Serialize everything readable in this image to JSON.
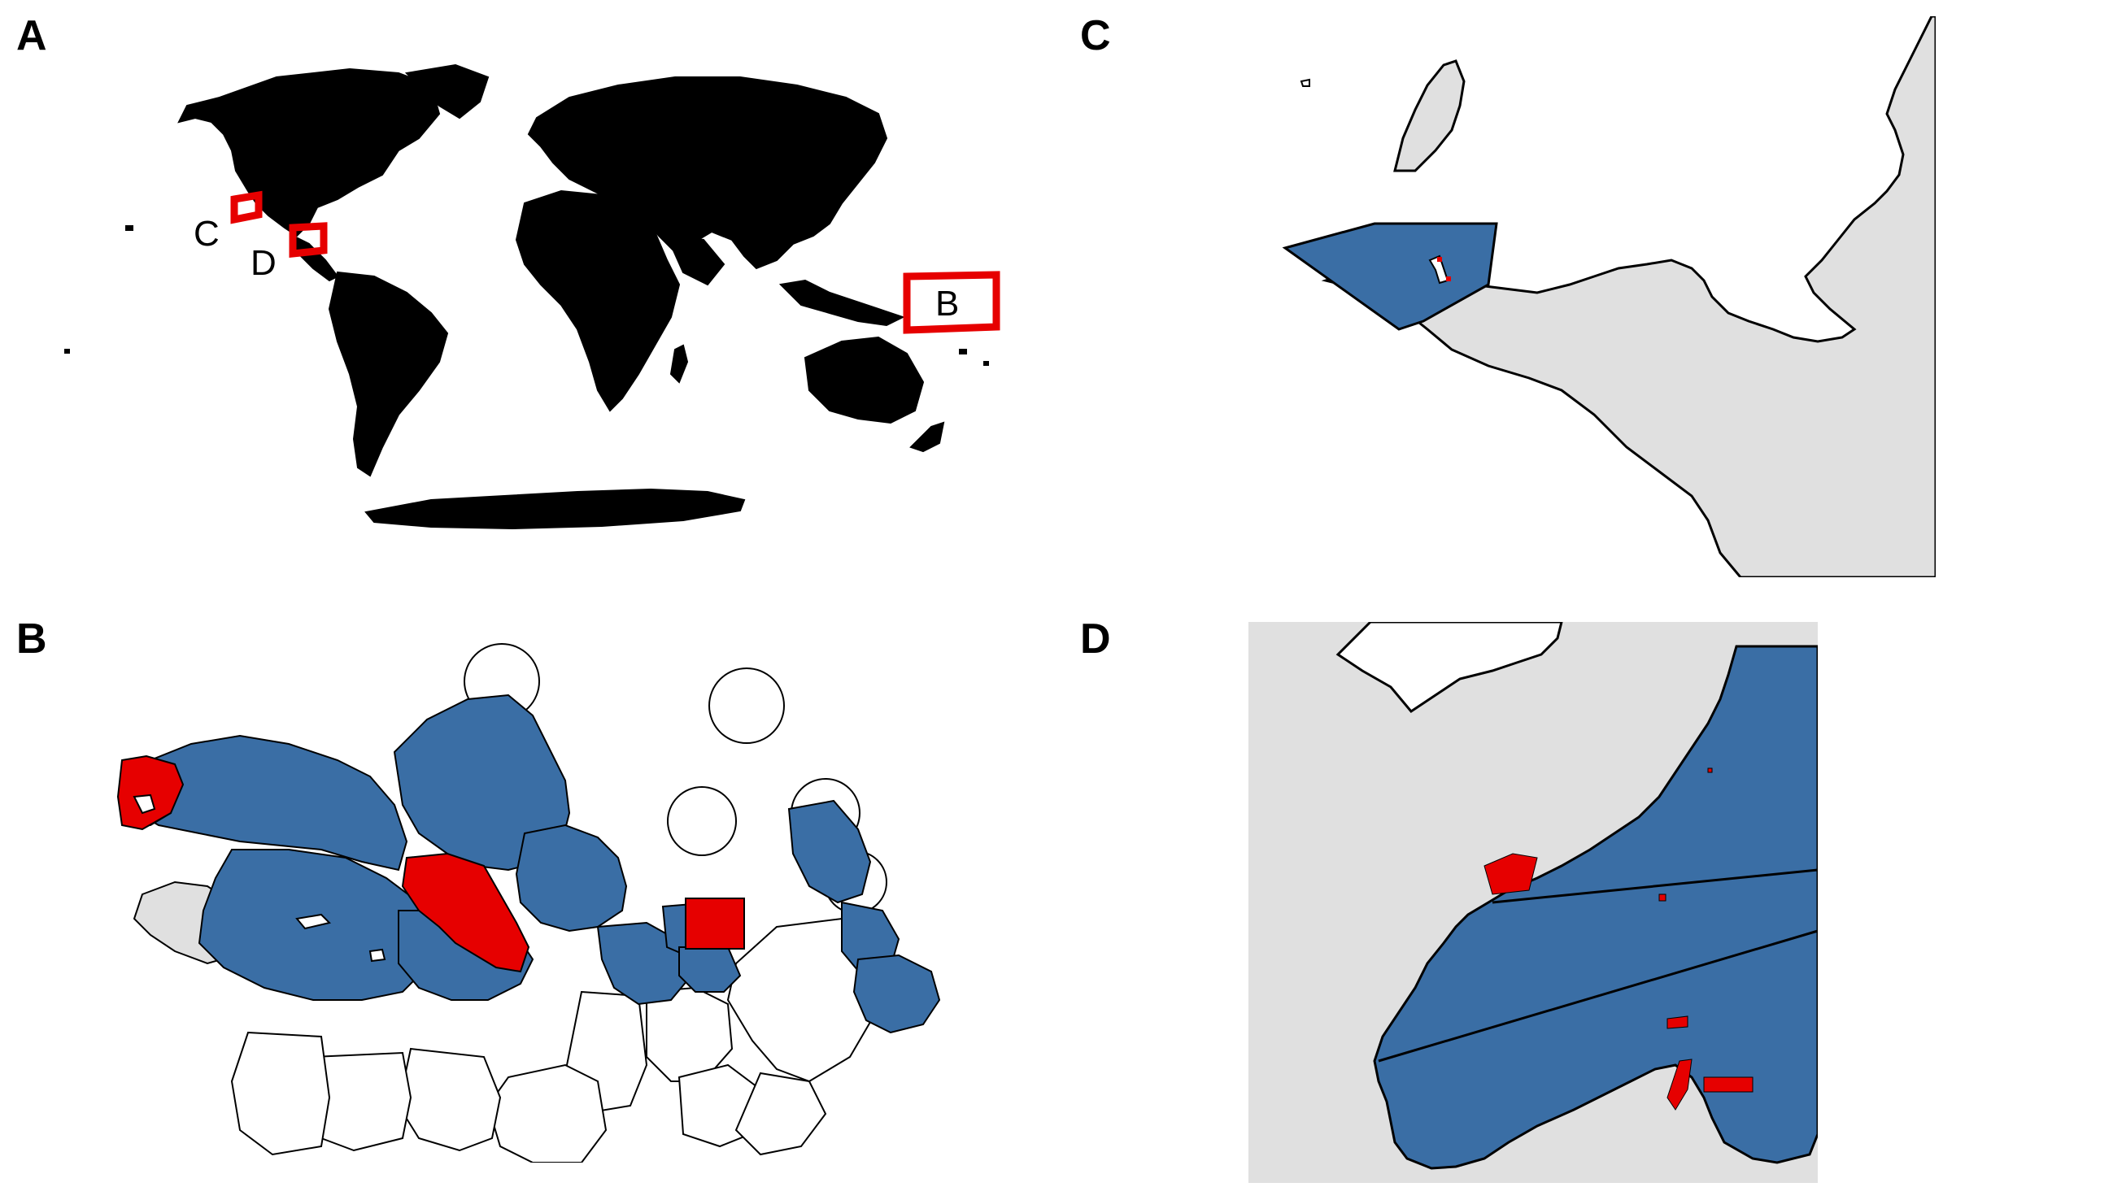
{
  "panels": {
    "a": {
      "label": "A"
    },
    "b": {
      "label": "B"
    },
    "c": {
      "label": "C"
    },
    "d": {
      "label": "D"
    }
  },
  "world_map": {
    "inset_labels": {
      "c": "C",
      "d": "D",
      "b": "B"
    }
  },
  "colors": {
    "land_world": "#000000",
    "land_context": "#e0e0e0",
    "blue_zone": "#3a6ea5",
    "red_zone": "#e60000",
    "inset_box": "#e60000",
    "outline": "#000000"
  }
}
